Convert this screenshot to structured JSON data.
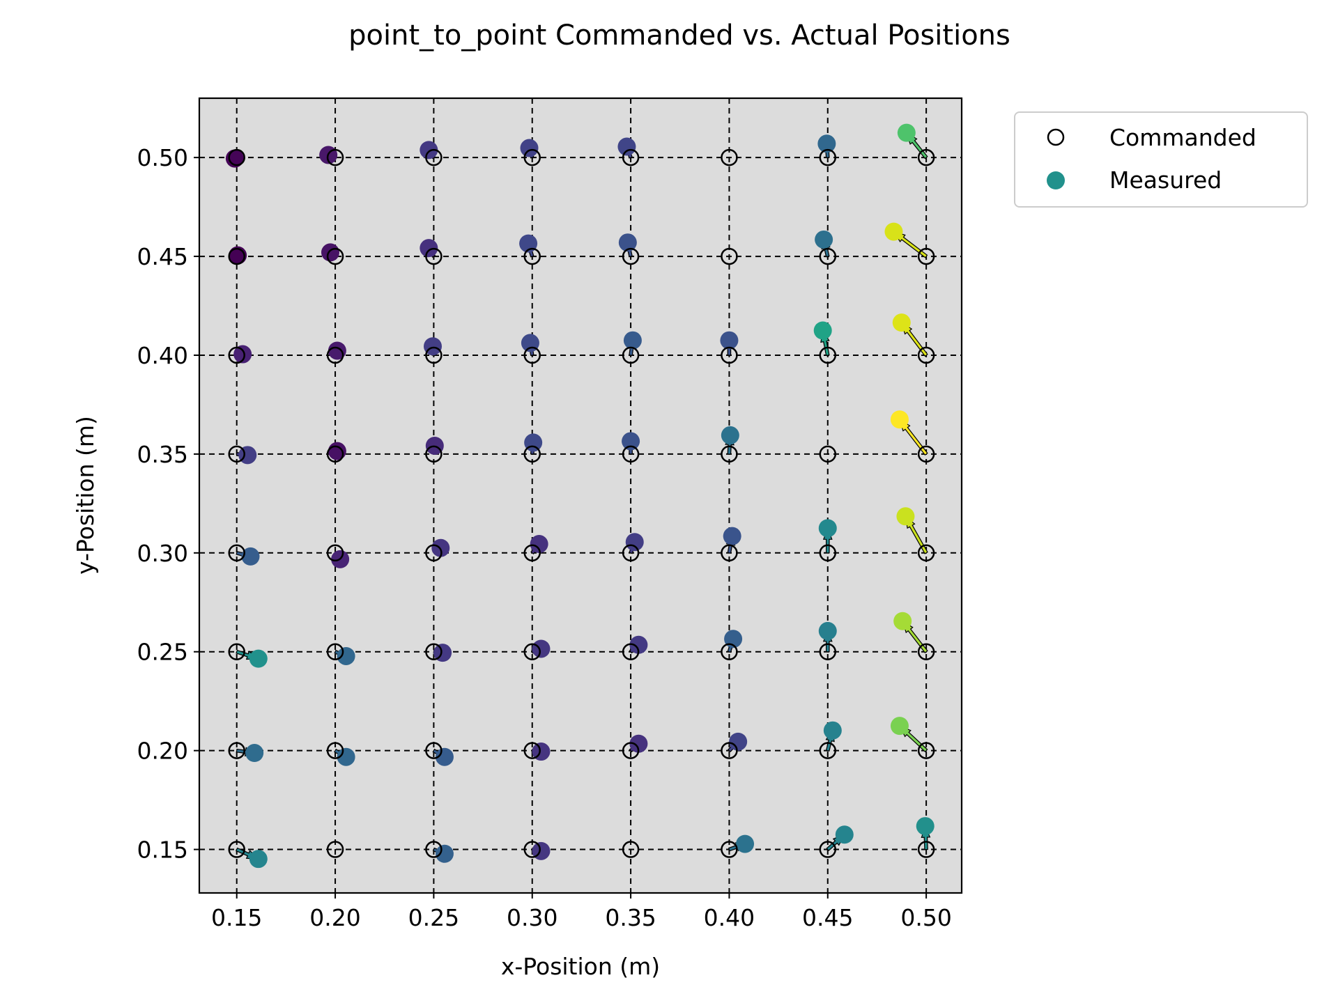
{
  "chart_data": {
    "type": "scatter",
    "title": "point_to_point Commanded vs. Actual Positions",
    "xlabel": "x-Position (m)",
    "ylabel": "y-Position (m)",
    "xlim": [
      0.131,
      0.518
    ],
    "ylim": [
      0.128,
      0.53
    ],
    "x_ticks": [
      "0.15",
      "0.20",
      "0.25",
      "0.30",
      "0.35",
      "0.40",
      "0.45",
      "0.50"
    ],
    "y_ticks": [
      "0.15",
      "0.20",
      "0.25",
      "0.30",
      "0.35",
      "0.40",
      "0.45",
      "0.50"
    ],
    "x_tick_values": [
      0.15,
      0.2,
      0.25,
      0.3,
      0.35,
      0.4,
      0.45,
      0.5
    ],
    "y_tick_values": [
      0.15,
      0.2,
      0.25,
      0.3,
      0.35,
      0.4,
      0.45,
      0.5
    ],
    "grid": "dashed",
    "background_color": "#dcdcdc",
    "legend": {
      "position": "outside-top-right",
      "entries": [
        "Commanded",
        "Measured"
      ],
      "measured_color": "#21918c"
    },
    "color_scale": "viridis",
    "series": [
      {
        "name": "Commanded",
        "x": [
          0.15,
          0.2,
          0.25,
          0.3,
          0.35,
          0.4,
          0.45,
          0.5,
          0.15,
          0.2,
          0.25,
          0.3,
          0.35,
          0.4,
          0.45,
          0.5,
          0.15,
          0.2,
          0.25,
          0.3,
          0.35,
          0.4,
          0.45,
          0.5,
          0.15,
          0.2,
          0.25,
          0.3,
          0.35,
          0.4,
          0.45,
          0.5,
          0.15,
          0.2,
          0.25,
          0.3,
          0.35,
          0.4,
          0.45,
          0.5,
          0.15,
          0.2,
          0.25,
          0.3,
          0.35,
          0.4,
          0.45,
          0.5,
          0.15,
          0.2,
          0.25,
          0.3,
          0.35,
          0.4,
          0.45,
          0.5,
          0.15,
          0.2,
          0.25,
          0.3,
          0.35,
          0.4,
          0.45,
          0.5
        ],
        "y": [
          0.5,
          0.5,
          0.5,
          0.5,
          0.5,
          0.5,
          0.5,
          0.5,
          0.45,
          0.45,
          0.45,
          0.45,
          0.45,
          0.45,
          0.45,
          0.45,
          0.4,
          0.4,
          0.4,
          0.4,
          0.4,
          0.4,
          0.4,
          0.4,
          0.35,
          0.35,
          0.35,
          0.35,
          0.35,
          0.35,
          0.35,
          0.35,
          0.3,
          0.3,
          0.3,
          0.3,
          0.3,
          0.3,
          0.3,
          0.3,
          0.25,
          0.25,
          0.25,
          0.25,
          0.25,
          0.25,
          0.25,
          0.25,
          0.2,
          0.2,
          0.2,
          0.2,
          0.2,
          0.2,
          0.2,
          0.2,
          0.15,
          0.15,
          0.15,
          0.15,
          0.15,
          0.15,
          0.15,
          0.15
        ]
      },
      {
        "name": "Measured",
        "points": [
          {
            "x": 0.149,
            "y": 0.4995,
            "c": "#450457"
          },
          {
            "x": 0.1965,
            "y": 0.5013,
            "c": "#481769"
          },
          {
            "x": 0.2475,
            "y": 0.5038,
            "c": "#443983"
          },
          {
            "x": 0.2985,
            "y": 0.5048,
            "c": "#414287"
          },
          {
            "x": 0.348,
            "y": 0.5055,
            "c": "#404588"
          },
          {
            "x": 0.4495,
            "y": 0.507,
            "c": "#31688e"
          },
          {
            "x": 0.49,
            "y": 0.5125,
            "c": "#4ec36b"
          },
          {
            "x": 0.1505,
            "y": 0.4505,
            "c": "#440154"
          },
          {
            "x": 0.1975,
            "y": 0.452,
            "c": "#471365"
          },
          {
            "x": 0.2475,
            "y": 0.4542,
            "c": "#46307e"
          },
          {
            "x": 0.298,
            "y": 0.4565,
            "c": "#3f4889"
          },
          {
            "x": 0.3485,
            "y": 0.457,
            "c": "#3b528b"
          },
          {
            "x": 0.448,
            "y": 0.4585,
            "c": "#2d708e"
          },
          {
            "x": 0.4835,
            "y": 0.4625,
            "c": "#d8e219"
          },
          {
            "x": 0.153,
            "y": 0.4005,
            "c": "#482173"
          },
          {
            "x": 0.201,
            "y": 0.4023,
            "c": "#481a6c"
          },
          {
            "x": 0.2495,
            "y": 0.4045,
            "c": "#433e85"
          },
          {
            "x": 0.299,
            "y": 0.4062,
            "c": "#3e4a89"
          },
          {
            "x": 0.351,
            "y": 0.4075,
            "c": "#375b8d"
          },
          {
            "x": 0.4,
            "y": 0.4075,
            "c": "#3b528b"
          },
          {
            "x": 0.4475,
            "y": 0.4125,
            "c": "#20a386"
          },
          {
            "x": 0.4875,
            "y": 0.4165,
            "c": "#dde318"
          },
          {
            "x": 0.1555,
            "y": 0.3495,
            "c": "#433e85"
          },
          {
            "x": 0.201,
            "y": 0.3515,
            "c": "#471164"
          },
          {
            "x": 0.2505,
            "y": 0.3542,
            "c": "#472c7a"
          },
          {
            "x": 0.3005,
            "y": 0.3558,
            "c": "#3e4989"
          },
          {
            "x": 0.35,
            "y": 0.3565,
            "c": "#3b528b"
          },
          {
            "x": 0.4005,
            "y": 0.3595,
            "c": "#2c728e"
          },
          {
            "x": 0.4865,
            "y": 0.3675,
            "c": "#fde725"
          },
          {
            "x": 0.157,
            "y": 0.2982,
            "c": "#365d8d"
          },
          {
            "x": 0.2025,
            "y": 0.2968,
            "c": "#482475"
          },
          {
            "x": 0.2535,
            "y": 0.3025,
            "c": "#453581"
          },
          {
            "x": 0.3035,
            "y": 0.3045,
            "c": "#46327e"
          },
          {
            "x": 0.352,
            "y": 0.3055,
            "c": "#433e85"
          },
          {
            "x": 0.4015,
            "y": 0.3085,
            "c": "#3a548c"
          },
          {
            "x": 0.45,
            "y": 0.3125,
            "c": "#23898e"
          },
          {
            "x": 0.4895,
            "y": 0.3185,
            "c": "#cae11f"
          },
          {
            "x": 0.161,
            "y": 0.2465,
            "c": "#21918c"
          },
          {
            "x": 0.2055,
            "y": 0.2478,
            "c": "#31678e"
          },
          {
            "x": 0.2545,
            "y": 0.2495,
            "c": "#443983"
          },
          {
            "x": 0.3045,
            "y": 0.2515,
            "c": "#453781"
          },
          {
            "x": 0.354,
            "y": 0.2535,
            "c": "#443a83"
          },
          {
            "x": 0.402,
            "y": 0.2565,
            "c": "#355f8d"
          },
          {
            "x": 0.45,
            "y": 0.2605,
            "c": "#277f8e"
          },
          {
            "x": 0.488,
            "y": 0.2655,
            "c": "#a5db36"
          },
          {
            "x": 0.159,
            "y": 0.1988,
            "c": "#2f6c8e"
          },
          {
            "x": 0.2055,
            "y": 0.1968,
            "c": "#31678e"
          },
          {
            "x": 0.2555,
            "y": 0.1968,
            "c": "#365c8d"
          },
          {
            "x": 0.3045,
            "y": 0.1995,
            "c": "#463480"
          },
          {
            "x": 0.354,
            "y": 0.2035,
            "c": "#46327e"
          },
          {
            "x": 0.4045,
            "y": 0.2045,
            "c": "#414487"
          },
          {
            "x": 0.4525,
            "y": 0.2102,
            "c": "#26828e"
          },
          {
            "x": 0.4865,
            "y": 0.2125,
            "c": "#7ad151"
          },
          {
            "x": 0.161,
            "y": 0.1452,
            "c": "#25858e"
          },
          {
            "x": 0.2555,
            "y": 0.1478,
            "c": "#34618d"
          },
          {
            "x": 0.3045,
            "y": 0.1492,
            "c": "#453781"
          },
          {
            "x": 0.408,
            "y": 0.1528,
            "c": "#2c728e"
          },
          {
            "x": 0.4585,
            "y": 0.1575,
            "c": "#25848e"
          },
          {
            "x": 0.4995,
            "y": 0.1618,
            "c": "#22908c"
          }
        ]
      }
    ]
  }
}
